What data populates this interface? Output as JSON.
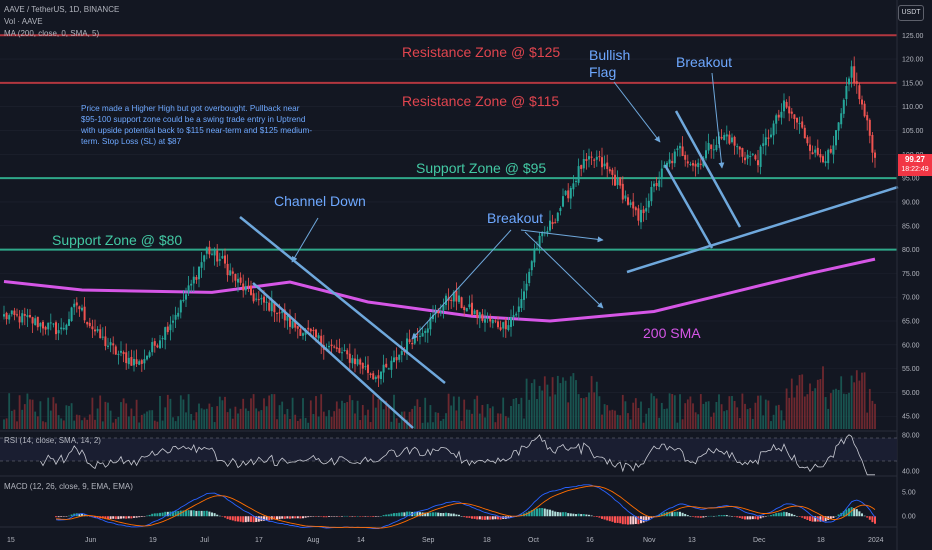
{
  "header": {
    "symbol_line": "AAVE / TetherUS, 1D, BINANCE",
    "vol_line": "Vol · AAVE",
    "ma_line": "MA (200, close, 0, SMA, 5)",
    "rsi_line": "RSI (14, close, SMA, 14, 2)",
    "macd_line": "MACD (12, 26, close, 9, EMA, EMA)",
    "currency": "USDT"
  },
  "annotations": {
    "note": "Price made a Higher High but got overbought. Pullback near $95-100 support zone could be a swing trade entry in Uptrend with upside potential back to $115 near-term and $125 medium-term. Stop Loss (SL) at $87",
    "res125": "Resistance Zone @ $125",
    "res115": "Resistance Zone @ $115",
    "sup95": "Support Zone @ $95",
    "sup80": "Support Zone @ $80",
    "channel_down": "Channel Down",
    "breakout1": "Breakout",
    "breakout2": "Breakout",
    "bullish": "Bullish",
    "flag": "Flag",
    "sma200": "200 SMA"
  },
  "price_tag": {
    "price": "99.27",
    "countdown": "18:22:49"
  },
  "colors": {
    "background": "#131722",
    "up": "#26a69a",
    "down": "#ef5350",
    "resistance": "#b2373f",
    "support": "#2fa88a",
    "trendline": "#6fa8dc",
    "sma": "#d556e6",
    "grid": "#1f2330"
  },
  "chart_data": [
    {
      "type": "candlestick",
      "title": "AAVE / TetherUS, 1D, BINANCE",
      "ylim": [
        44,
        128
      ],
      "yticks": [
        45,
        50,
        55,
        60,
        65,
        70,
        75,
        80,
        85,
        90,
        95,
        100,
        105,
        110,
        115,
        120,
        125
      ],
      "xlabels": [
        "15",
        "Jun",
        "19",
        "Jul",
        "17",
        "Aug",
        "14",
        "Sep",
        "18",
        "Oct",
        "16",
        "Nov",
        "13",
        "Dec",
        "18",
        "2024"
      ],
      "horizontal_levels": [
        {
          "name": "Resistance Zone @ $125",
          "value": 125
        },
        {
          "name": "Resistance Zone @ $115",
          "value": 115
        },
        {
          "name": "Support Zone @ $95",
          "value": 95
        },
        {
          "name": "Support Zone @ $80",
          "value": 80
        }
      ],
      "keypoints": [
        [
          0,
          66.0
        ],
        [
          8,
          65.5
        ],
        [
          16,
          64.0
        ],
        [
          22,
          63.0
        ],
        [
          28,
          68.5
        ],
        [
          36,
          62.0
        ],
        [
          44,
          58.0
        ],
        [
          52,
          56.0
        ],
        [
          58,
          60.0
        ],
        [
          66,
          66.5
        ],
        [
          72,
          72.5
        ],
        [
          78,
          80.0
        ],
        [
          84,
          77.5
        ],
        [
          90,
          73.0
        ],
        [
          98,
          69.0
        ],
        [
          104,
          68.0
        ],
        [
          110,
          64.5
        ],
        [
          118,
          62.0
        ],
        [
          124,
          60.0
        ],
        [
          130,
          58.0
        ],
        [
          136,
          56.5
        ],
        [
          142,
          53.5
        ],
        [
          148,
          55.0
        ],
        [
          156,
          61.0
        ],
        [
          164,
          65.0
        ],
        [
          172,
          70.5
        ],
        [
          178,
          67.5
        ],
        [
          186,
          65.0
        ],
        [
          192,
          64.0
        ],
        [
          198,
          67.5
        ],
        [
          200,
          71.0
        ],
        [
          204,
          80.0
        ],
        [
          210,
          85.0
        ],
        [
          216,
          91.0
        ],
        [
          222,
          97.5
        ],
        [
          228,
          99.0
        ],
        [
          234,
          95.5
        ],
        [
          240,
          90.0
        ],
        [
          244,
          86.0
        ],
        [
          248,
          91.0
        ],
        [
          254,
          97.0
        ],
        [
          260,
          101.0
        ],
        [
          266,
          97.5
        ],
        [
          272,
          102.0
        ],
        [
          278,
          104.0
        ],
        [
          284,
          100.0
        ],
        [
          290,
          99.0
        ],
        [
          294,
          104.0
        ],
        [
          300,
          110.0
        ],
        [
          306,
          106.0
        ],
        [
          312,
          100.0
        ],
        [
          318,
          99.5
        ],
        [
          322,
          108.0
        ],
        [
          326,
          118.0
        ],
        [
          330,
          110.0
        ],
        [
          333,
          104.0
        ],
        [
          335,
          99.3
        ]
      ],
      "last_price": 99.27,
      "sma200": [
        [
          0,
          73.3
        ],
        [
          30,
          71.5
        ],
        [
          80,
          71.0
        ],
        [
          110,
          73.2
        ],
        [
          140,
          69.0
        ],
        [
          180,
          66.0
        ],
        [
          210,
          65.0
        ],
        [
          250,
          67.0
        ],
        [
          280,
          71.0
        ],
        [
          310,
          75.0
        ],
        [
          335,
          78.0
        ]
      ],
      "volume": {
        "ylim": [
          0,
          80
        ]
      }
    },
    {
      "type": "line",
      "title": "RSI (14, close, SMA, 14, 2)",
      "ylim": [
        38,
        82
      ],
      "yticks": [
        80.0,
        40.0
      ]
    },
    {
      "type": "bar",
      "title": "MACD (12, 26, close, 9, EMA, EMA)",
      "ylim": [
        -2.2,
        7.2
      ],
      "yticks": [
        5.0,
        0.0
      ]
    }
  ]
}
